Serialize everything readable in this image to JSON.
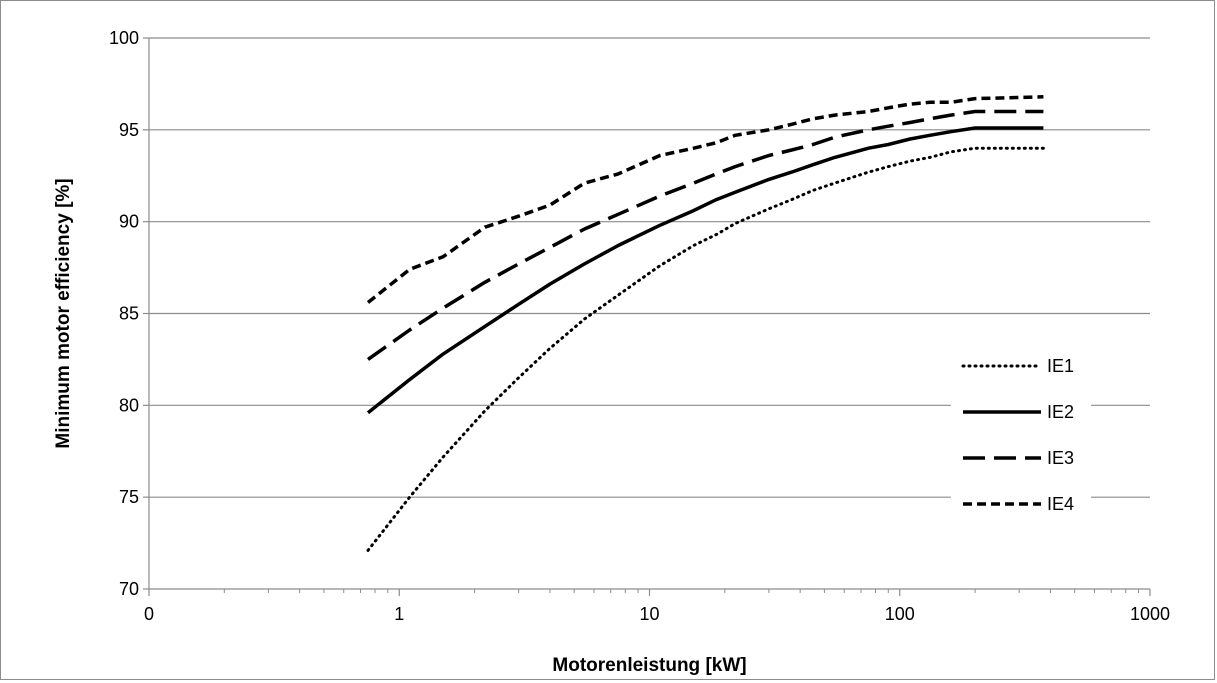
{
  "chart_data": {
    "type": "line",
    "title": "",
    "xlabel": "Motorenleistung [kW]",
    "ylabel": "Minimum motor efficiency [%]",
    "x_scale": "log",
    "xlim": [
      0.1,
      1000
    ],
    "ylim": [
      70,
      100
    ],
    "x_ticks": [
      0.1,
      1,
      10,
      100,
      1000
    ],
    "x_tick_labels": [
      "0",
      "1",
      "10",
      "100",
      "1000"
    ],
    "y_ticks": [
      70,
      75,
      80,
      85,
      90,
      95,
      100
    ],
    "y_tick_labels": [
      "70",
      "75",
      "80",
      "85",
      "90",
      "95",
      "100"
    ],
    "grid": "horizontal",
    "legend_position": "right",
    "x": [
      0.75,
      1.1,
      1.5,
      2.2,
      3,
      4,
      5.5,
      7.5,
      11,
      15,
      18.5,
      22,
      30,
      37,
      45,
      55,
      75,
      90,
      110,
      132,
      160,
      200,
      375
    ],
    "series": [
      {
        "name": "IE1",
        "style": "dotted",
        "color": "#000000",
        "values": [
          72.1,
          75.0,
          77.2,
          79.7,
          81.5,
          83.1,
          84.7,
          86.0,
          87.6,
          88.7,
          89.3,
          89.9,
          90.7,
          91.2,
          91.7,
          92.1,
          92.7,
          93.0,
          93.3,
          93.5,
          93.8,
          94.0,
          94.0
        ]
      },
      {
        "name": "IE2",
        "style": "solid",
        "color": "#000000",
        "values": [
          79.6,
          81.4,
          82.8,
          84.3,
          85.5,
          86.6,
          87.7,
          88.7,
          89.8,
          90.6,
          91.2,
          91.6,
          92.3,
          92.7,
          93.1,
          93.5,
          94.0,
          94.2,
          94.5,
          94.7,
          94.9,
          95.1,
          95.1
        ]
      },
      {
        "name": "IE3",
        "style": "dashed",
        "color": "#000000",
        "values": [
          82.5,
          84.1,
          85.3,
          86.7,
          87.7,
          88.6,
          89.6,
          90.4,
          91.4,
          92.1,
          92.6,
          93.0,
          93.6,
          93.9,
          94.2,
          94.6,
          95.0,
          95.2,
          95.4,
          95.6,
          95.8,
          96.0,
          96.0
        ]
      },
      {
        "name": "IE4",
        "style": "short-dashed",
        "color": "#000000",
        "values": [
          85.6,
          87.4,
          88.1,
          89.7,
          90.3,
          90.9,
          92.1,
          92.6,
          93.6,
          94.0,
          94.3,
          94.7,
          95.0,
          95.3,
          95.6,
          95.8,
          96.0,
          96.2,
          96.4,
          96.5,
          96.5,
          96.7,
          96.8
        ]
      }
    ]
  }
}
